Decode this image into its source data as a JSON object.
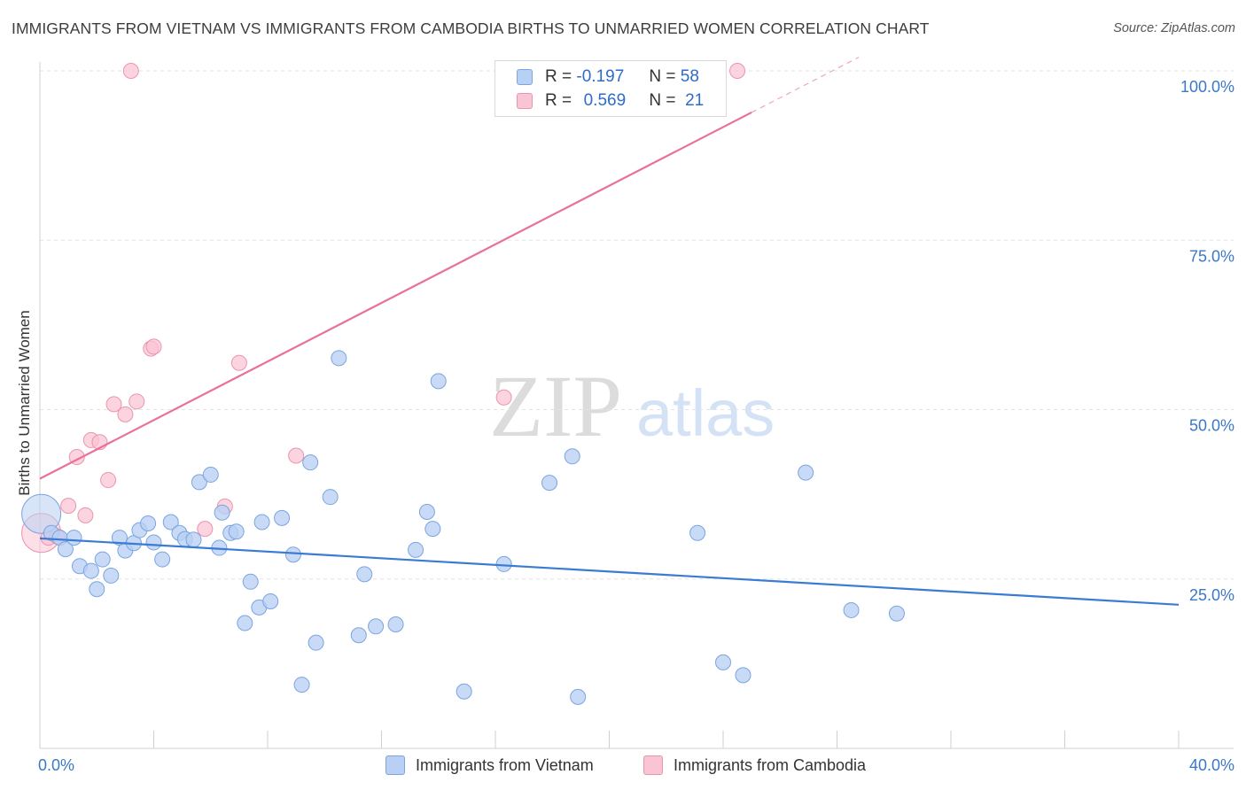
{
  "title": "IMMIGRANTS FROM VIETNAM VS IMMIGRANTS FROM CAMBODIA BIRTHS TO UNMARRIED WOMEN CORRELATION CHART",
  "source": "Source: ZipAtlas.com",
  "watermark": {
    "zip": "ZIP",
    "atlas": "atlas"
  },
  "legend": {
    "r_label": "R =",
    "n_label": "N =",
    "rows": [
      {
        "r": "-0.197",
        "n": "58"
      },
      {
        "r": "0.569",
        "n": "21"
      }
    ]
  },
  "bottom_legend": [
    "Immigrants from Vietnam",
    "Immigrants from Cambodia"
  ],
  "chart_data": {
    "type": "scatter",
    "title": "IMMIGRANTS FROM VIETNAM VS IMMIGRANTS FROM CAMBODIA BIRTHS TO UNMARRIED WOMEN CORRELATION CHART",
    "xlabel": "",
    "ylabel": "Births to Unmarried Women",
    "xlim": [
      0,
      40
    ],
    "ylim": [
      0,
      102
    ],
    "x_tick_labels": [
      "0.0%",
      "40.0%"
    ],
    "y_ticks": [
      25,
      50,
      75,
      100
    ],
    "y_tick_labels": [
      "25.0%",
      "50.0%",
      "75.0%",
      "100.0%"
    ],
    "colors": {
      "vietnam": "#3a7bd5",
      "cambodia": "#e8709a"
    },
    "series": [
      {
        "name": "Immigrants from Vietnam",
        "r": -0.197,
        "n": 58,
        "trend": {
          "x": [
            0,
            40
          ],
          "y": [
            31.0,
            21.2
          ]
        },
        "points": [
          {
            "x": 0.05,
            "y": 34.6,
            "big": true
          },
          {
            "x": 0.4,
            "y": 31.8
          },
          {
            "x": 0.7,
            "y": 31.1
          },
          {
            "x": 0.9,
            "y": 29.4
          },
          {
            "x": 1.2,
            "y": 31.1
          },
          {
            "x": 1.4,
            "y": 26.9
          },
          {
            "x": 1.8,
            "y": 26.2
          },
          {
            "x": 2.0,
            "y": 23.5
          },
          {
            "x": 2.2,
            "y": 27.9
          },
          {
            "x": 2.5,
            "y": 25.5
          },
          {
            "x": 2.8,
            "y": 31.1
          },
          {
            "x": 3.0,
            "y": 29.2
          },
          {
            "x": 3.3,
            "y": 30.3
          },
          {
            "x": 3.5,
            "y": 32.2
          },
          {
            "x": 3.8,
            "y": 33.2
          },
          {
            "x": 4.0,
            "y": 30.4
          },
          {
            "x": 4.3,
            "y": 27.9
          },
          {
            "x": 4.6,
            "y": 33.4
          },
          {
            "x": 4.9,
            "y": 31.8
          },
          {
            "x": 5.1,
            "y": 30.9
          },
          {
            "x": 5.4,
            "y": 30.8
          },
          {
            "x": 5.6,
            "y": 39.3
          },
          {
            "x": 6.0,
            "y": 40.4
          },
          {
            "x": 6.3,
            "y": 29.6
          },
          {
            "x": 6.4,
            "y": 34.8
          },
          {
            "x": 6.7,
            "y": 31.8
          },
          {
            "x": 6.9,
            "y": 32.0
          },
          {
            "x": 7.2,
            "y": 18.5
          },
          {
            "x": 7.4,
            "y": 24.6
          },
          {
            "x": 7.7,
            "y": 20.8
          },
          {
            "x": 7.8,
            "y": 33.4
          },
          {
            "x": 8.1,
            "y": 21.7
          },
          {
            "x": 8.5,
            "y": 34.0
          },
          {
            "x": 8.9,
            "y": 28.6
          },
          {
            "x": 9.2,
            "y": 9.4
          },
          {
            "x": 9.5,
            "y": 42.2
          },
          {
            "x": 9.7,
            "y": 15.6
          },
          {
            "x": 10.2,
            "y": 37.1
          },
          {
            "x": 10.5,
            "y": 57.6
          },
          {
            "x": 11.2,
            "y": 16.7
          },
          {
            "x": 11.4,
            "y": 25.7
          },
          {
            "x": 11.8,
            "y": 18.0
          },
          {
            "x": 12.5,
            "y": 18.3
          },
          {
            "x": 13.2,
            "y": 29.3
          },
          {
            "x": 13.6,
            "y": 34.9
          },
          {
            "x": 13.8,
            "y": 32.4
          },
          {
            "x": 14.0,
            "y": 54.2
          },
          {
            "x": 14.9,
            "y": 8.4
          },
          {
            "x": 16.3,
            "y": 27.2
          },
          {
            "x": 17.9,
            "y": 39.2
          },
          {
            "x": 18.7,
            "y": 43.1
          },
          {
            "x": 18.9,
            "y": 7.6
          },
          {
            "x": 23.1,
            "y": 31.8
          },
          {
            "x": 24.0,
            "y": 12.7
          },
          {
            "x": 24.7,
            "y": 10.8
          },
          {
            "x": 26.9,
            "y": 40.7
          },
          {
            "x": 28.5,
            "y": 20.4
          },
          {
            "x": 30.1,
            "y": 19.9
          }
        ]
      },
      {
        "name": "Immigrants from Cambodia",
        "r": 0.569,
        "n": 21,
        "trend": {
          "x": [
            0,
            40
          ],
          "y": [
            39.8,
            126.3
          ],
          "solid_until": 25.0
        },
        "points": [
          {
            "x": 0.05,
            "y": 31.8,
            "big": true
          },
          {
            "x": 0.3,
            "y": 31.1
          },
          {
            "x": 0.6,
            "y": 31.3
          },
          {
            "x": 1.0,
            "y": 35.8
          },
          {
            "x": 1.3,
            "y": 43.0
          },
          {
            "x": 1.6,
            "y": 34.4
          },
          {
            "x": 1.8,
            "y": 45.5
          },
          {
            "x": 2.1,
            "y": 45.2
          },
          {
            "x": 2.4,
            "y": 39.6
          },
          {
            "x": 2.6,
            "y": 50.8
          },
          {
            "x": 3.0,
            "y": 49.3
          },
          {
            "x": 3.2,
            "y": 100.0
          },
          {
            "x": 3.4,
            "y": 51.2
          },
          {
            "x": 3.9,
            "y": 59.0
          },
          {
            "x": 4.0,
            "y": 59.3
          },
          {
            "x": 5.8,
            "y": 32.4
          },
          {
            "x": 6.5,
            "y": 35.7
          },
          {
            "x": 7.0,
            "y": 56.9
          },
          {
            "x": 9.0,
            "y": 43.2
          },
          {
            "x": 16.3,
            "y": 51.8
          },
          {
            "x": 24.5,
            "y": 100.0
          }
        ]
      }
    ]
  }
}
